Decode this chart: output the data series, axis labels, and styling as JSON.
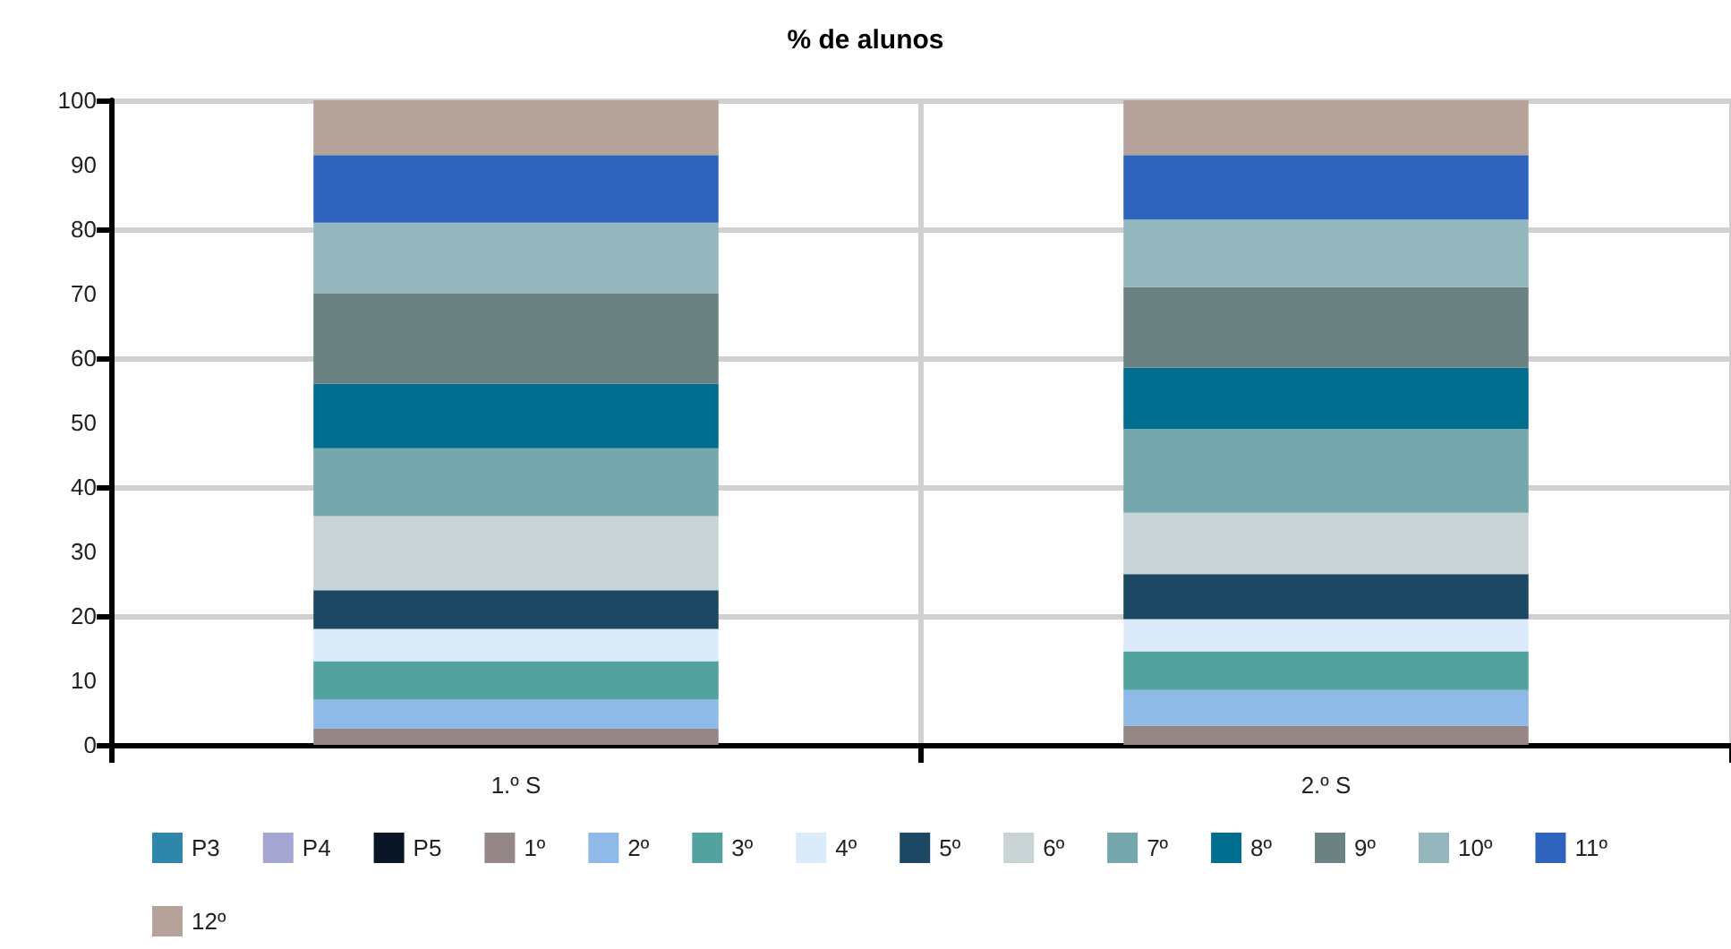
{
  "chart_data": {
    "type": "bar",
    "title": "% de alunos",
    "stacked": true,
    "categories": [
      "1.º S",
      "2.º S"
    ],
    "series": [
      {
        "name": "P3",
        "color": "#2e86ab",
        "values": [
          0,
          0
        ]
      },
      {
        "name": "P4",
        "color": "#a6a6d2",
        "values": [
          0,
          0
        ]
      },
      {
        "name": "P5",
        "color": "#0a1625",
        "values": [
          0,
          0
        ]
      },
      {
        "name": "1º",
        "color": "#948785",
        "values": [
          2.5,
          3
        ]
      },
      {
        "name": "2º",
        "color": "#8fb9e6",
        "values": [
          4.5,
          5.5
        ]
      },
      {
        "name": "3º",
        "color": "#52a2a0",
        "values": [
          6,
          6
        ]
      },
      {
        "name": "4º",
        "color": "#dcebfa",
        "values": [
          5,
          5
        ]
      },
      {
        "name": "5º",
        "color": "#1d4864",
        "values": [
          6,
          7
        ]
      },
      {
        "name": "6º",
        "color": "#c8d4d5",
        "values": [
          11.5,
          9.5
        ]
      },
      {
        "name": "7º",
        "color": "#75a7ad",
        "values": [
          10.5,
          13
        ]
      },
      {
        "name": "8º",
        "color": "#016d8f",
        "values": [
          10,
          9.5
        ]
      },
      {
        "name": "9º",
        "color": "#6c8282",
        "values": [
          14,
          12.5
        ]
      },
      {
        "name": "10º",
        "color": "#94b7bd",
        "values": [
          11,
          10.5
        ]
      },
      {
        "name": "11º",
        "color": "#2f64be",
        "values": [
          10.5,
          10
        ]
      },
      {
        "name": "12º",
        "color": "#b4a29b",
        "values": [
          8.5,
          8.5
        ]
      }
    ],
    "ylim": [
      0,
      100
    ],
    "yticks": [
      0,
      10,
      20,
      30,
      40,
      50,
      60,
      70,
      80,
      90,
      100
    ],
    "grid": true,
    "legend": "bottom"
  }
}
